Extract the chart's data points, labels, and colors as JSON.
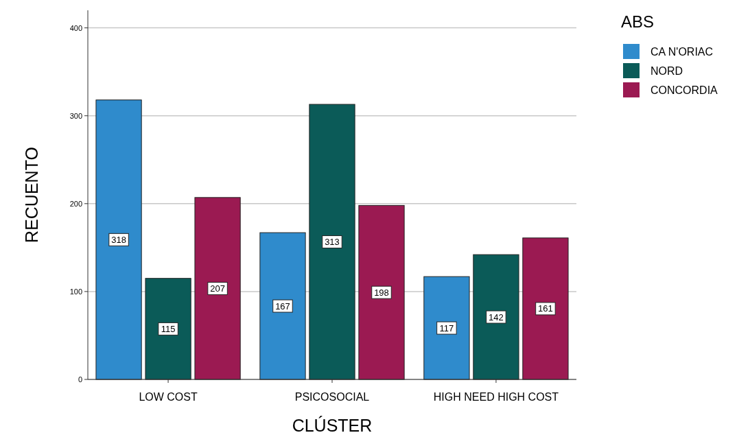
{
  "chart_data": {
    "type": "bar",
    "xlabel": "CLÚSTER",
    "ylabel": "RECUENTO",
    "legend_title": "ABS",
    "categories": [
      "LOW COST",
      "PSICOSOCIAL",
      "HIGH NEED HIGH COST"
    ],
    "series": [
      {
        "name": "CA N'ORIAC",
        "color": "#2f8bcc",
        "values": [
          318,
          167,
          117
        ]
      },
      {
        "name": "NORD",
        "color": "#0b5b58",
        "values": [
          115,
          313,
          142
        ]
      },
      {
        "name": "CONCORDIA",
        "color": "#9b1a52",
        "values": [
          207,
          198,
          161
        ]
      }
    ],
    "ylim": [
      0,
      420
    ],
    "yticks": [
      0,
      100,
      200,
      300,
      400
    ],
    "grid": "y",
    "legend": "top right",
    "data_labels": true
  }
}
